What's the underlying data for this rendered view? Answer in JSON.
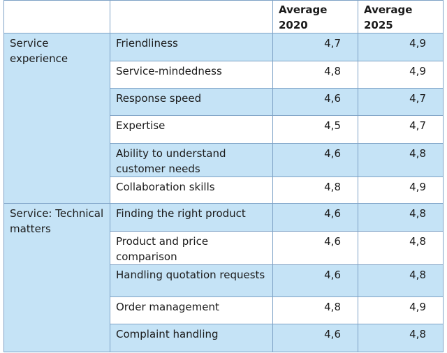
{
  "header": {
    "col_category": "",
    "col_item": "",
    "col_2020": "Average 2020",
    "col_2025": "Average 2025"
  },
  "groups": [
    {
      "category": "Service experience",
      "rows": [
        {
          "item": "Friendliness",
          "avg_2020": "4,7",
          "avg_2025": "4,9"
        },
        {
          "item": "Service-mindedness",
          "avg_2020": "4,8",
          "avg_2025": "4,9"
        },
        {
          "item": "Response speed",
          "avg_2020": "4,6",
          "avg_2025": "4,7"
        },
        {
          "item": "Expertise",
          "avg_2020": "4,5",
          "avg_2025": "4,7"
        },
        {
          "item": "Ability to understand customer needs",
          "avg_2020": "4,6",
          "avg_2025": "4,8"
        },
        {
          "item": "Collaboration skills",
          "avg_2020": "4,8",
          "avg_2025": "4,9"
        }
      ]
    },
    {
      "category": "Service: Technical matters",
      "rows": [
        {
          "item": "Finding the right product",
          "avg_2020": "4,6",
          "avg_2025": "4,8"
        },
        {
          "item": "Product and price comparison",
          "avg_2020": "4,6",
          "avg_2025": "4,8"
        },
        {
          "item": "Handling quotation requests",
          "avg_2020": "4,6",
          "avg_2025": "4,8"
        },
        {
          "item": "Order management",
          "avg_2020": "4,8",
          "avg_2025": "4,9"
        },
        {
          "item": "Complaint handling",
          "avg_2020": "4,6",
          "avg_2025": "4,8"
        }
      ]
    }
  ]
}
